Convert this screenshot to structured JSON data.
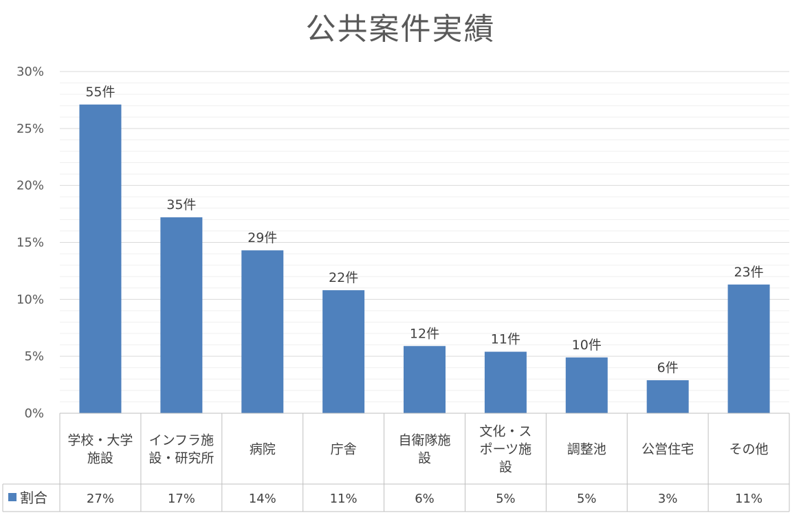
{
  "chart_data": {
    "type": "bar",
    "title": "公共案件実績",
    "categories": [
      [
        "学校・大学",
        "施設"
      ],
      [
        "インフラ施",
        "設・研究所"
      ],
      [
        "病院"
      ],
      [
        "庁舎"
      ],
      [
        "自衛隊施",
        "設"
      ],
      [
        "文化・ス",
        "ポーツ施",
        "設"
      ],
      [
        "調整池"
      ],
      [
        "公営住宅"
      ],
      [
        "その他"
      ]
    ],
    "series": [
      {
        "name": "割合",
        "values": [
          27.1,
          17.2,
          14.3,
          10.8,
          5.9,
          5.4,
          4.9,
          2.9,
          11.3
        ],
        "data_labels": [
          "55件",
          "35件",
          "29件",
          "22件",
          "12件",
          "11件",
          "10件",
          "6件",
          "23件"
        ],
        "table_values": [
          "27%",
          "17%",
          "14%",
          "11%",
          "6%",
          "5%",
          "5%",
          "3%",
          "11%"
        ]
      }
    ],
    "ylim": [
      0,
      30
    ],
    "yticks": [
      "0%",
      "5%",
      "10%",
      "15%",
      "20%",
      "25%",
      "30%"
    ],
    "ytick_values": [
      0,
      5,
      10,
      15,
      20,
      25,
      30
    ],
    "grid": true,
    "legend_placement": "data-table",
    "colors": {
      "bar": "#4f81bd",
      "grid": "#d9d9d9",
      "table_border": "#bfbfbf"
    }
  }
}
